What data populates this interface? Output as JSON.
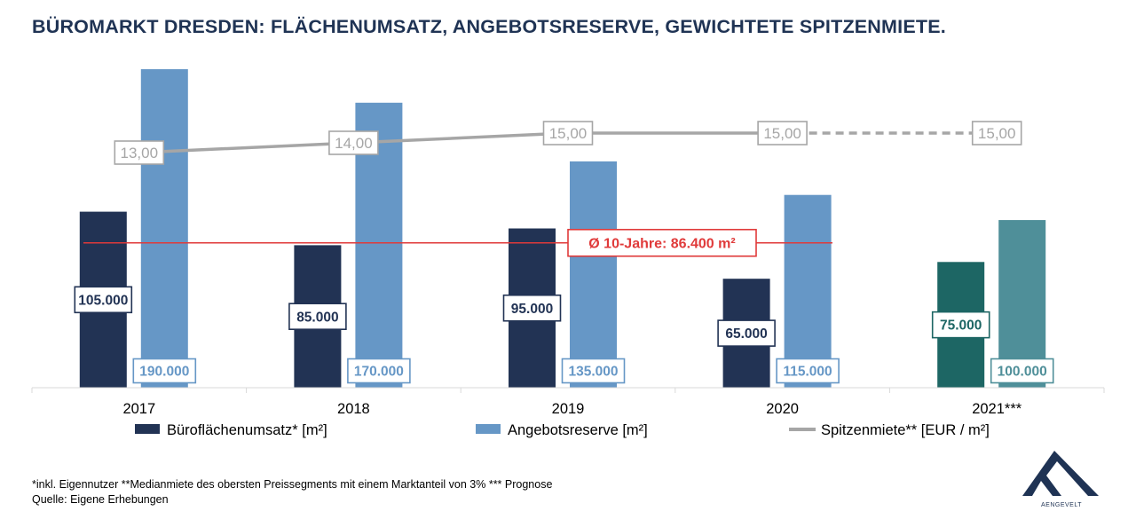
{
  "title": "BÜROMARKT DRESDEN: FLÄCHENUMSATZ, ANGEBOTSRESERVE, GEWICHTETE SPITZENMIETE.",
  "chart_data": {
    "type": "bar",
    "categories": [
      "2017",
      "2018",
      "2019",
      "2020",
      "2021***"
    ],
    "series": [
      {
        "name": "Büroflächenumsatz* [m²]",
        "values": [
          105000,
          85000,
          95000,
          65000,
          75000
        ],
        "labels": [
          "105.000",
          "85.000",
          "95.000",
          "65.000",
          "75.000"
        ],
        "color": "#223354",
        "forecast_color": "#1d6664"
      },
      {
        "name": "Angebotsreserve [m²]",
        "values": [
          190000,
          170000,
          135000,
          115000,
          100000
        ],
        "labels": [
          "190.000",
          "170.000",
          "135.000",
          "115.000",
          "100.000"
        ],
        "color": "#6697c6",
        "forecast_color": "#4f8f99"
      },
      {
        "name": "Spitzenmiete** [EUR / m²]",
        "type": "line",
        "values": [
          13.0,
          14.0,
          15.0,
          15.0,
          15.0
        ],
        "labels": [
          "13,00",
          "14,00",
          "15,00",
          "15,00",
          "15,00"
        ],
        "color": "#a6a6a6",
        "dashed_last_segment": true
      }
    ],
    "reference_line": {
      "label": "Ø 10-Jahre: 86.400 m²",
      "value": 86400,
      "color": "#e03a3a"
    },
    "ylim": [
      0,
      190000
    ],
    "line_ylim": [
      0,
      19
    ],
    "grid": false,
    "legend_position": "bottom"
  },
  "footnotes": [
    "*inkl. Eigennutzer **Medianmiete des obersten Preissegments mit einem Marktanteil von 3% *** Prognose",
    "Quelle: Eigene Erhebungen"
  ],
  "logo": {
    "name": "AENGEVELT",
    "color": "#1f3354"
  }
}
